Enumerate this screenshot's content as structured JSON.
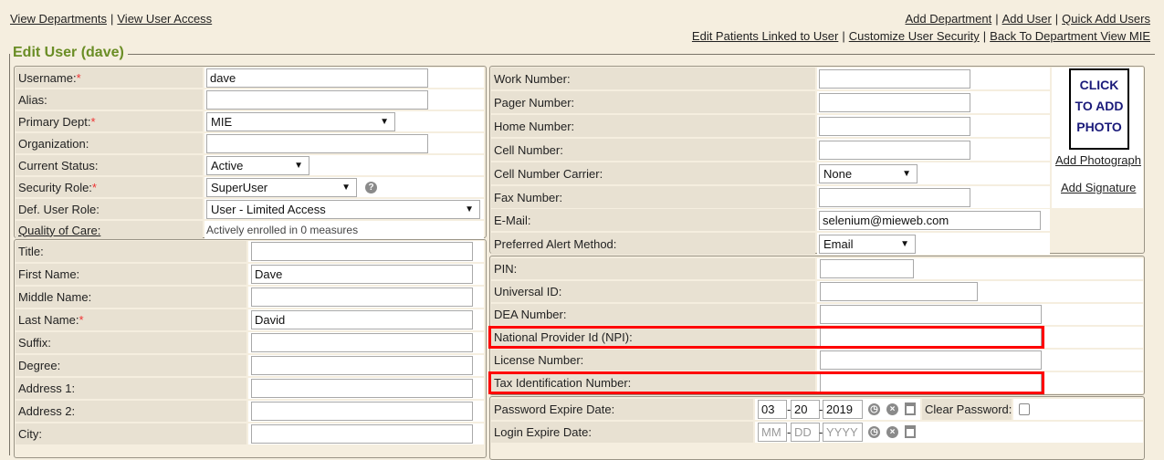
{
  "nav": {
    "left_links": [
      "View Departments",
      "View User Access"
    ],
    "right_links_row1": [
      "Add Department",
      "Add User",
      "Quick Add Users"
    ],
    "right_links_row2": [
      "Edit Patients Linked to User",
      "Customize User Security",
      "Back To Department View MIE"
    ]
  },
  "title": "Edit User (dave)",
  "accent_color": "#6a8d25",
  "highlight_color": "#ff0000",
  "account": [
    {
      "label": "Username:",
      "required": true,
      "type": "text",
      "value": "dave"
    },
    {
      "label": "Alias:",
      "required": false,
      "type": "text",
      "value": ""
    },
    {
      "label": "Primary Dept:",
      "required": true,
      "type": "select",
      "value": "MIE"
    },
    {
      "label": "Organization:",
      "required": false,
      "type": "text",
      "value": ""
    },
    {
      "label": "Current Status:",
      "required": false,
      "type": "select",
      "value": "Active"
    },
    {
      "label": "Security Role:",
      "required": true,
      "type": "select",
      "value": "SuperUser",
      "help_icon": "question-circle-icon"
    },
    {
      "label": "Def. User Role:",
      "required": false,
      "type": "select",
      "value": "User - Limited Access"
    },
    {
      "label": "Quality of Care:",
      "required": false,
      "type": "static",
      "link": true,
      "value": "Actively enrolled in 0 measures"
    }
  ],
  "personal": [
    {
      "label": "Title:",
      "required": false,
      "type": "text",
      "value": ""
    },
    {
      "label": "First Name:",
      "required": false,
      "type": "text",
      "value": "Dave"
    },
    {
      "label": "Middle Name:",
      "required": false,
      "type": "text",
      "value": ""
    },
    {
      "label": "Last Name:",
      "required": true,
      "type": "text",
      "value": "David"
    },
    {
      "label": "Suffix:",
      "required": false,
      "type": "text",
      "value": ""
    },
    {
      "label": "Degree:",
      "required": false,
      "type": "text",
      "value": ""
    },
    {
      "label": "Address 1:",
      "required": false,
      "type": "text",
      "value": ""
    },
    {
      "label": "Address 2:",
      "required": false,
      "type": "text",
      "value": ""
    },
    {
      "label": "City:",
      "required": false,
      "type": "text",
      "value": ""
    }
  ],
  "contact": [
    {
      "label": "Work Number:",
      "type": "text",
      "value": ""
    },
    {
      "label": "Pager Number:",
      "type": "text",
      "value": ""
    },
    {
      "label": "Home Number:",
      "type": "text",
      "value": ""
    },
    {
      "label": "Cell Number:",
      "type": "text",
      "value": ""
    },
    {
      "label": "Cell Number Carrier:",
      "type": "select",
      "value": "None"
    },
    {
      "label": "Fax Number:",
      "type": "text",
      "value": ""
    },
    {
      "label": "E-Mail:",
      "type": "text",
      "value": "selenium@mieweb.com"
    },
    {
      "label": "Preferred Alert Method:",
      "type": "select",
      "value": "Email"
    }
  ],
  "photo": {
    "placeholder_lines": [
      "CLICK",
      "TO ADD",
      "PHOTO"
    ],
    "add_photograph": "Add Photograph",
    "add_signature": "Add Signature"
  },
  "ids": [
    {
      "label": "PIN:",
      "type": "text",
      "value": ""
    },
    {
      "label": "Universal ID:",
      "type": "text",
      "value": ""
    },
    {
      "label": "DEA Number:",
      "type": "text",
      "value": ""
    },
    {
      "label": "National Provider Id (NPI):",
      "type": "text",
      "value": "",
      "highlighted": true
    },
    {
      "label": "License Number:",
      "type": "text",
      "value": ""
    },
    {
      "label": "Tax Identification Number:",
      "type": "text",
      "value": "",
      "highlighted": true
    }
  ],
  "dates": {
    "password_expire": {
      "label": "Password Expire Date:",
      "mm": "03",
      "dd": "20",
      "yyyy": "2019"
    },
    "login_expire": {
      "label": "Login Expire Date:",
      "mm": "",
      "dd": "",
      "yyyy": "",
      "mm_placeholder": "MM",
      "dd_placeholder": "DD",
      "yyyy_placeholder": "YYYY"
    },
    "clear_password_label": "Clear Password:",
    "clear_password_checked": false
  }
}
